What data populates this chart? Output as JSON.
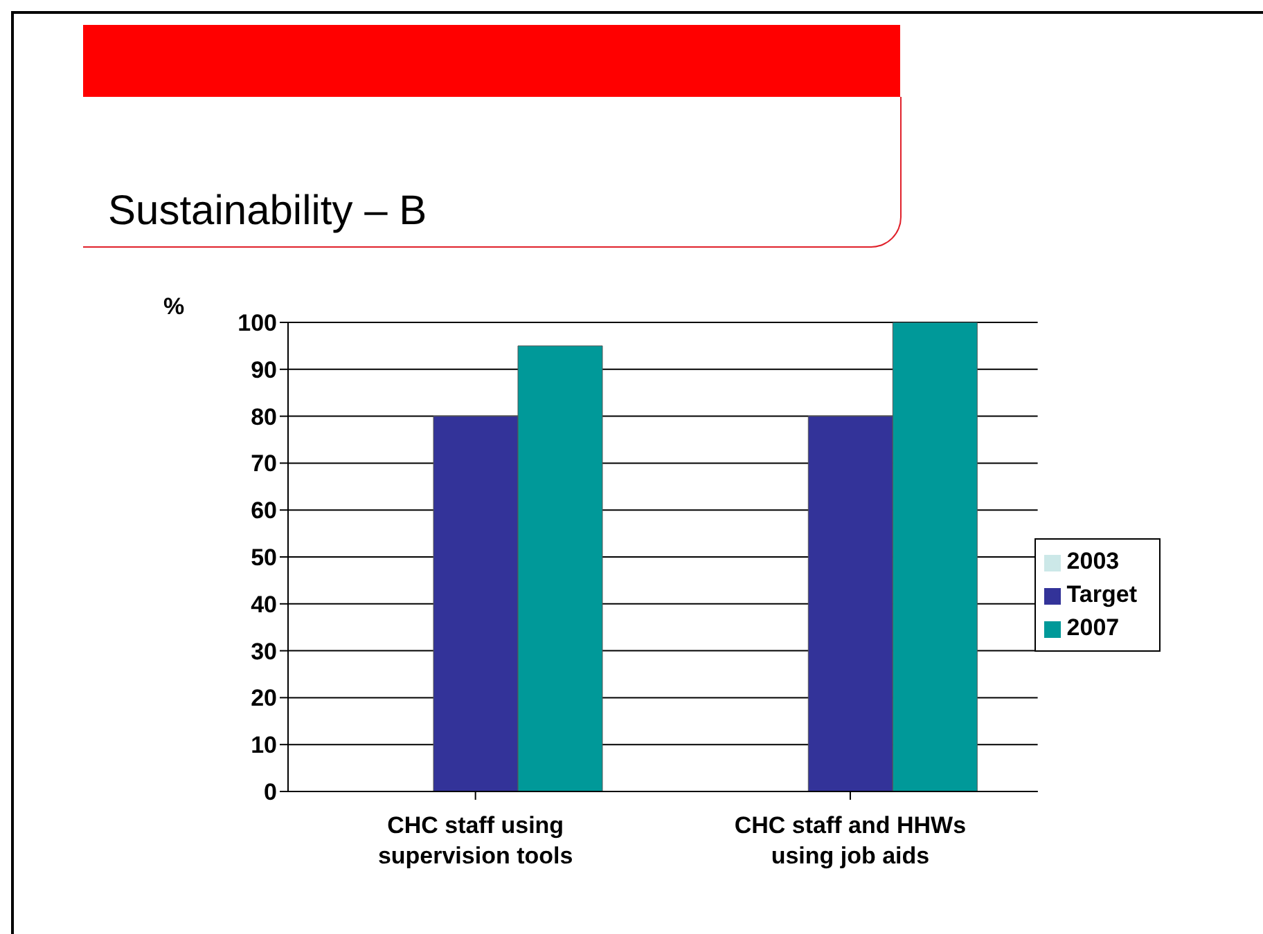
{
  "chart_data": {
    "type": "bar",
    "title": "Sustainability – B",
    "ylabel": "%",
    "categories": [
      "CHC staff using supervision tools",
      "CHC staff and HHWs using job aids"
    ],
    "series": [
      {
        "name": "2003",
        "color": "#cce8e8",
        "values": [
          0,
          0
        ]
      },
      {
        "name": "Target",
        "color": "#333399",
        "values": [
          80,
          80
        ]
      },
      {
        "name": "2007",
        "color": "#009999",
        "values": [
          95,
          100
        ]
      }
    ],
    "ylim": [
      0,
      100
    ],
    "yticks": [
      0,
      10,
      20,
      30,
      40,
      50,
      60,
      70,
      80,
      90,
      100
    ],
    "grid": "y",
    "legend": "right"
  }
}
